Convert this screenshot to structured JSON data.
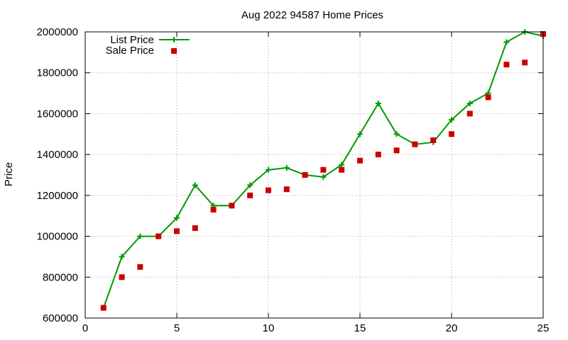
{
  "chart_data": {
    "type": "line",
    "title": "Aug 2022 94587 Home Prices",
    "xlabel": "",
    "ylabel": "Price",
    "xlim": [
      0,
      25
    ],
    "ylim": [
      600000,
      2000000
    ],
    "xticks": [
      "0",
      "5",
      "10",
      "15",
      "20",
      "25"
    ],
    "yticks": [
      "600000",
      "800000",
      "1000000",
      "1200000",
      "1400000",
      "1600000",
      "1800000",
      "2000000"
    ],
    "grid": true,
    "legend_position": "top-left",
    "series": [
      {
        "name": "List Price",
        "style": "line-plus",
        "color": "#009900",
        "x": [
          1,
          2,
          3,
          4,
          5,
          6,
          7,
          8,
          9,
          10,
          11,
          12,
          13,
          14,
          15,
          16,
          17,
          18,
          19,
          20,
          21,
          22,
          23,
          24,
          25
        ],
        "y": [
          650000,
          900000,
          1000000,
          1000000,
          1090000,
          1250000,
          1150000,
          1150000,
          1250000,
          1325000,
          1335000,
          1300000,
          1290000,
          1350000,
          1500000,
          1650000,
          1500000,
          1450000,
          1460000,
          1570000,
          1650000,
          1700000,
          1950000,
          2000000,
          1980000
        ]
      },
      {
        "name": "Sale Price",
        "style": "square-points",
        "color": "#cc0000",
        "x": [
          1,
          2,
          3,
          4,
          5,
          6,
          7,
          8,
          9,
          10,
          11,
          12,
          13,
          14,
          15,
          16,
          17,
          18,
          19,
          20,
          21,
          22,
          23,
          24,
          25
        ],
        "y": [
          650000,
          800000,
          850000,
          1000000,
          1025000,
          1040000,
          1130000,
          1150000,
          1200000,
          1225000,
          1230000,
          1300000,
          1325000,
          1325000,
          1370000,
          1400000,
          1420000,
          1450000,
          1470000,
          1500000,
          1600000,
          1680000,
          1840000,
          1850000,
          1990000
        ]
      }
    ]
  }
}
